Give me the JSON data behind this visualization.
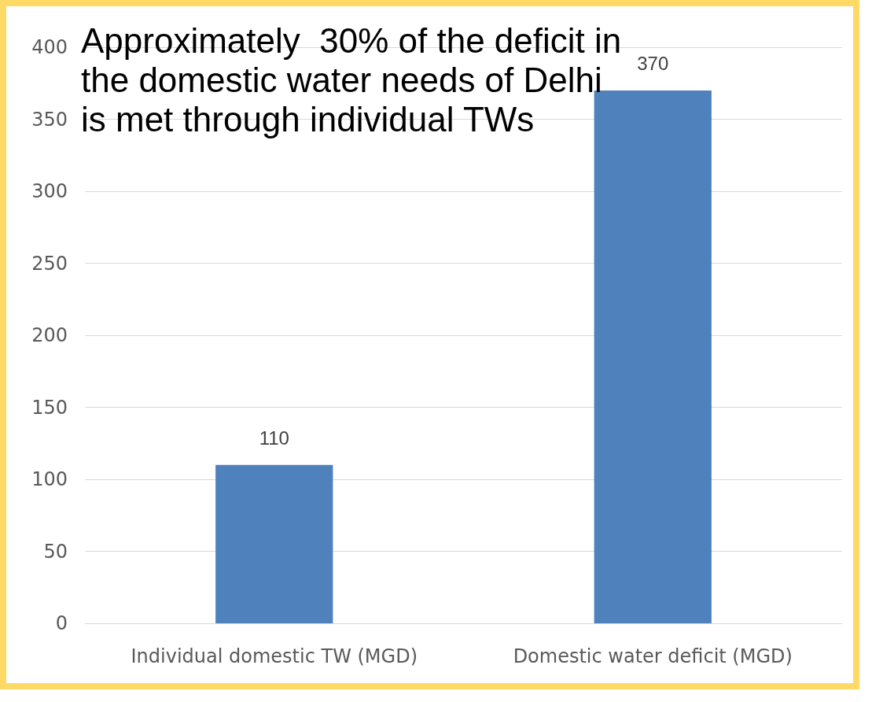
{
  "chart_data": {
    "type": "bar",
    "categories": [
      "Individual domestic TW (MGD)",
      "Domestic water deficit (MGD)"
    ],
    "values": [
      110,
      370
    ],
    "color": "#4f81bd",
    "ylim": [
      0,
      400
    ],
    "yticks": [
      0,
      50,
      100,
      150,
      200,
      250,
      300,
      350,
      400
    ],
    "grid": "y",
    "data_labels": true,
    "annotations": [
      "Approximately  30% of the deficit in the domestic water needs of Delhi is met through individual TWs"
    ]
  }
}
